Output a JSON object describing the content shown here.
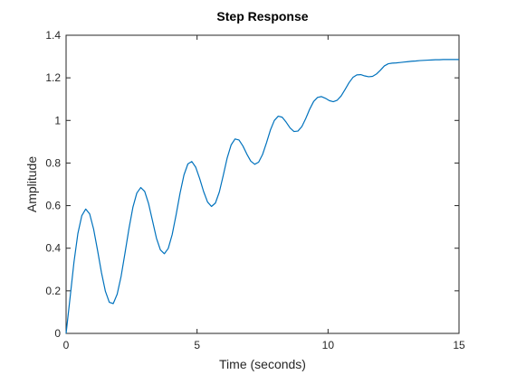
{
  "figure": {
    "background": "#ffffff"
  },
  "chart_data": {
    "type": "line",
    "title": "Step Response",
    "xlabel": "Time (seconds)",
    "ylabel": "Amplitude",
    "xlim": [
      0,
      15
    ],
    "ylim": [
      0,
      1.4
    ],
    "xticks": [
      0,
      5,
      10,
      15
    ],
    "xtick_labels": [
      "0",
      "5",
      "10",
      "15"
    ],
    "yticks": [
      0,
      0.2,
      0.4,
      0.6,
      0.8,
      1,
      1.2,
      1.4
    ],
    "ytick_labels": [
      "0",
      "0.2",
      "0.4",
      "0.6",
      "0.8",
      "1",
      "1.2",
      "1.4"
    ],
    "grid": false,
    "legend": "none",
    "line_color": "#0072BD",
    "axes_color": "#262626",
    "series": [
      {
        "x": [
          0,
          0.15,
          0.3,
          0.45,
          0.6,
          0.75,
          0.9,
          1.05,
          1.2,
          1.35,
          1.5,
          1.65,
          1.8,
          1.95,
          2.1,
          2.25,
          2.4,
          2.55,
          2.7,
          2.85,
          3.0,
          3.15,
          3.3,
          3.45,
          3.6,
          3.75,
          3.9,
          4.05,
          4.2,
          4.35,
          4.5,
          4.65,
          4.8,
          4.95,
          5.1,
          5.25,
          5.4,
          5.55,
          5.7,
          5.85,
          6.0,
          6.15,
          6.3,
          6.45,
          6.6,
          6.75,
          6.9,
          7.05,
          7.2,
          7.35,
          7.5,
          7.65,
          7.8,
          7.95,
          8.1,
          8.25,
          8.4,
          8.55,
          8.7,
          8.85,
          9.0,
          9.15,
          9.3,
          9.45,
          9.6,
          9.75,
          9.9,
          10.05,
          10.2,
          10.35,
          10.5,
          10.65,
          10.8,
          10.95,
          11.1,
          11.25,
          11.4,
          11.55,
          11.7,
          11.85,
          12.0,
          12.15,
          12.3,
          12.45,
          12.6,
          12.75,
          12.9,
          13.05,
          13.2,
          13.35,
          13.5,
          13.65,
          13.8,
          13.95,
          14.1,
          14.25,
          14.4,
          14.55,
          14.7,
          14.85,
          15.0
        ],
        "y": [
          0,
          0.165,
          0.334,
          0.469,
          0.553,
          0.584,
          0.561,
          0.49,
          0.391,
          0.286,
          0.198,
          0.146,
          0.14,
          0.184,
          0.268,
          0.378,
          0.492,
          0.592,
          0.659,
          0.685,
          0.667,
          0.609,
          0.528,
          0.447,
          0.392,
          0.374,
          0.399,
          0.464,
          0.557,
          0.658,
          0.744,
          0.796,
          0.807,
          0.78,
          0.727,
          0.666,
          0.617,
          0.596,
          0.612,
          0.664,
          0.742,
          0.824,
          0.885,
          0.913,
          0.908,
          0.88,
          0.842,
          0.809,
          0.794,
          0.804,
          0.84,
          0.895,
          0.955,
          1.0,
          1.02,
          1.015,
          0.992,
          0.965,
          0.948,
          0.95,
          0.971,
          1.009,
          1.053,
          1.089,
          1.108,
          1.112,
          1.104,
          1.093,
          1.088,
          1.095,
          1.115,
          1.145,
          1.177,
          1.202,
          1.214,
          1.215,
          1.209,
          1.205,
          1.207,
          1.218,
          1.236,
          1.256,
          1.266,
          1.269,
          1.27,
          1.272,
          1.274,
          1.276,
          1.278,
          1.279,
          1.281,
          1.282,
          1.283,
          1.284,
          1.285,
          1.285,
          1.286,
          1.286,
          1.286,
          1.286,
          1.286
        ]
      }
    ]
  }
}
